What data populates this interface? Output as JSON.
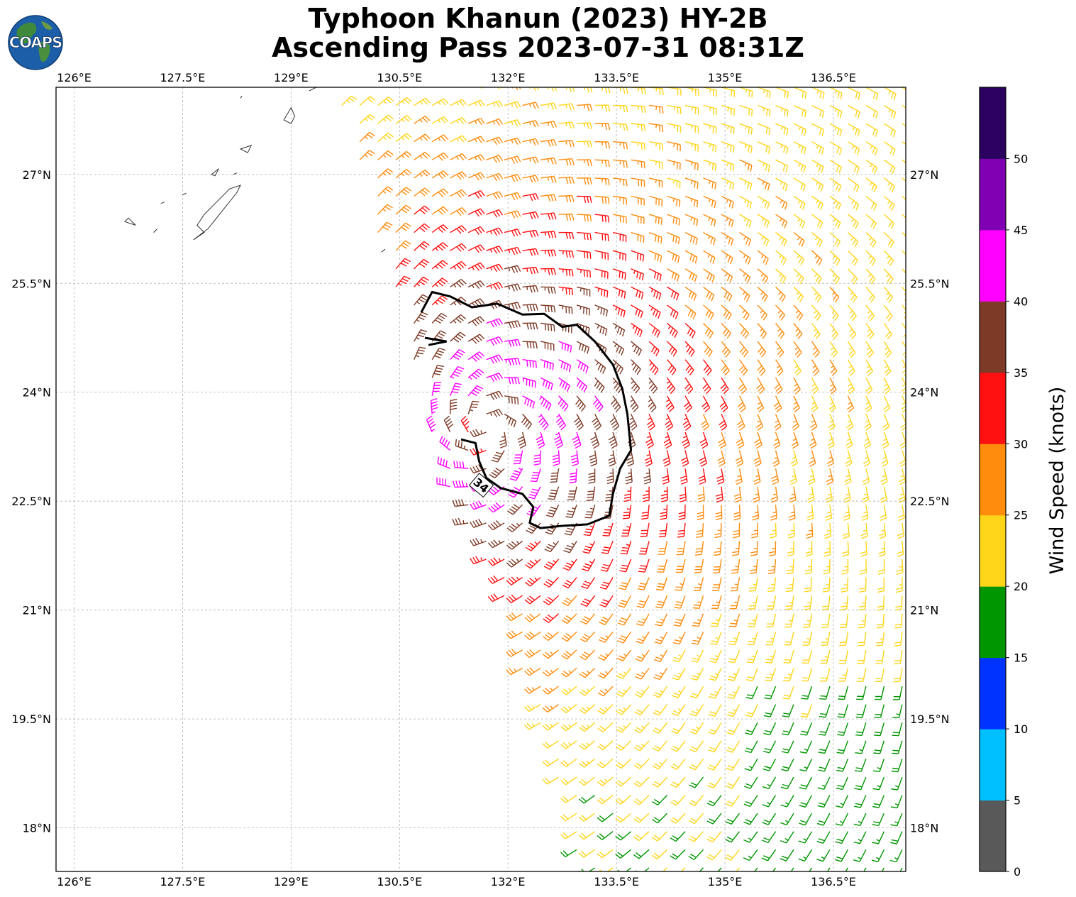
{
  "title": {
    "line1": "Typhoon Khanun (2023) HY-2B",
    "line2": "Ascending Pass 2023-07-31 08:31Z"
  },
  "logo": {
    "text": "COAPS",
    "icon": "globe-icon"
  },
  "map": {
    "lon_range": [
      125.75,
      137.5
    ],
    "lat_range": [
      17.4,
      28.2
    ],
    "lon_ticks": [
      {
        "value": 126,
        "label": "126°E"
      },
      {
        "value": 127.5,
        "label": "127.5°E"
      },
      {
        "value": 129,
        "label": "129°E"
      },
      {
        "value": 130.5,
        "label": "130.5°E"
      },
      {
        "value": 132,
        "label": "132°E"
      },
      {
        "value": 133.5,
        "label": "133.5°E"
      },
      {
        "value": 135,
        "label": "135°E"
      },
      {
        "value": 136.5,
        "label": "136.5°E"
      }
    ],
    "lat_ticks": [
      {
        "value": 27,
        "label": "27°N"
      },
      {
        "value": 25.5,
        "label": "25.5°N"
      },
      {
        "value": 24,
        "label": "24°N"
      },
      {
        "value": 22.5,
        "label": "22.5°N"
      },
      {
        "value": 21,
        "label": "21°N"
      },
      {
        "value": 19.5,
        "label": "19.5°N"
      },
      {
        "value": 18,
        "label": "18°N"
      }
    ],
    "gridlines": true,
    "storm_center": {
      "lon": 131.7,
      "lat": 23.5
    },
    "swath_west_edge": [
      [
        129.6,
        28.1
      ],
      [
        130.4,
        25.5
      ],
      [
        130.8,
        24.0
      ],
      [
        131.1,
        22.9
      ],
      [
        131.9,
        21.2
      ],
      [
        132.2,
        20.2
      ],
      [
        132.7,
        18.7
      ],
      [
        133.0,
        17.4
      ]
    ],
    "contour": {
      "label": "34",
      "points": [
        [
          130.8,
          25.1
        ],
        [
          130.95,
          25.38
        ],
        [
          131.2,
          25.32
        ],
        [
          131.5,
          25.17
        ],
        [
          131.85,
          25.22
        ],
        [
          132.2,
          25.07
        ],
        [
          132.5,
          25.08
        ],
        [
          132.75,
          24.9
        ],
        [
          132.95,
          24.93
        ],
        [
          133.2,
          24.7
        ],
        [
          133.45,
          24.38
        ],
        [
          133.58,
          24.05
        ],
        [
          133.65,
          23.7
        ],
        [
          133.7,
          23.2
        ],
        [
          133.55,
          22.95
        ],
        [
          133.45,
          22.6
        ],
        [
          133.4,
          22.3
        ],
        [
          133.1,
          22.18
        ],
        [
          132.75,
          22.16
        ],
        [
          132.45,
          22.13
        ],
        [
          132.3,
          22.2
        ],
        [
          132.35,
          22.42
        ],
        [
          132.2,
          22.6
        ],
        [
          131.9,
          22.68
        ],
        [
          131.7,
          22.82
        ],
        [
          131.6,
          23.05
        ],
        [
          131.55,
          23.3
        ],
        [
          131.35,
          23.35
        ]
      ],
      "hook": [
        [
          130.85,
          24.75
        ],
        [
          131.15,
          24.7
        ],
        [
          130.9,
          24.65
        ]
      ]
    },
    "islands": [
      [
        [
          127.65,
          26.1
        ],
        [
          127.85,
          26.25
        ],
        [
          128.05,
          26.5
        ],
        [
          128.25,
          26.75
        ],
        [
          128.3,
          26.85
        ],
        [
          128.15,
          26.8
        ],
        [
          127.95,
          26.6
        ],
        [
          127.8,
          26.45
        ],
        [
          127.7,
          26.3
        ],
        [
          127.8,
          26.2
        ]
      ],
      [
        [
          128.9,
          27.75
        ],
        [
          129.0,
          27.92
        ],
        [
          129.05,
          27.8
        ],
        [
          129.0,
          27.7
        ]
      ],
      [
        [
          128.3,
          28.05
        ],
        [
          128.32,
          28.08
        ]
      ],
      [
        [
          128.3,
          27.35
        ],
        [
          128.45,
          27.4
        ],
        [
          128.4,
          27.3
        ]
      ],
      [
        [
          127.9,
          27.0
        ],
        [
          128.0,
          27.08
        ],
        [
          127.95,
          26.98
        ]
      ],
      [
        [
          128.2,
          27.0
        ],
        [
          128.25,
          27.02
        ]
      ],
      [
        [
          126.7,
          26.35
        ],
        [
          126.85,
          26.3
        ],
        [
          126.75,
          26.4
        ]
      ],
      [
        [
          127.2,
          26.6
        ],
        [
          127.25,
          26.62
        ]
      ],
      [
        [
          127.1,
          26.2
        ],
        [
          127.15,
          26.25
        ]
      ],
      [
        [
          127.5,
          26.72
        ],
        [
          127.55,
          26.74
        ]
      ],
      [
        [
          130.25,
          25.93
        ],
        [
          130.3,
          25.97
        ]
      ],
      [
        [
          129.25,
          28.15
        ],
        [
          129.45,
          28.25
        ]
      ]
    ]
  },
  "colorbar": {
    "label": "Wind Speed (knots)",
    "bins": [
      {
        "min": 0,
        "max": 5,
        "color": "#595959"
      },
      {
        "min": 5,
        "max": 10,
        "color": "#00bfff"
      },
      {
        "min": 10,
        "max": 15,
        "color": "#0033ff"
      },
      {
        "min": 15,
        "max": 20,
        "color": "#009600"
      },
      {
        "min": 20,
        "max": 25,
        "color": "#ffd51a"
      },
      {
        "min": 25,
        "max": 30,
        "color": "#ff8c0d"
      },
      {
        "min": 30,
        "max": 35,
        "color": "#ff1010"
      },
      {
        "min": 35,
        "max": 40,
        "color": "#7d3a26"
      },
      {
        "min": 40,
        "max": 45,
        "color": "#ff00ff"
      },
      {
        "min": 45,
        "max": 50,
        "color": "#8000b4"
      },
      {
        "min": 50,
        "max": 55,
        "color": "#2b005e"
      }
    ],
    "ticks": [
      "0",
      "5",
      "10",
      "15",
      "20",
      "25",
      "30",
      "35",
      "40",
      "45",
      "50"
    ]
  },
  "wind_field": {
    "grid_spacing_deg": 0.25,
    "units": "knots",
    "profile": {
      "radius_deg": [
        0.3,
        0.8,
        1.2,
        1.9,
        2.6,
        3.5,
        4.5,
        5.6,
        8.0
      ],
      "speed_kt": [
        36,
        43,
        40,
        35,
        31,
        27,
        23,
        21,
        19
      ]
    }
  }
}
